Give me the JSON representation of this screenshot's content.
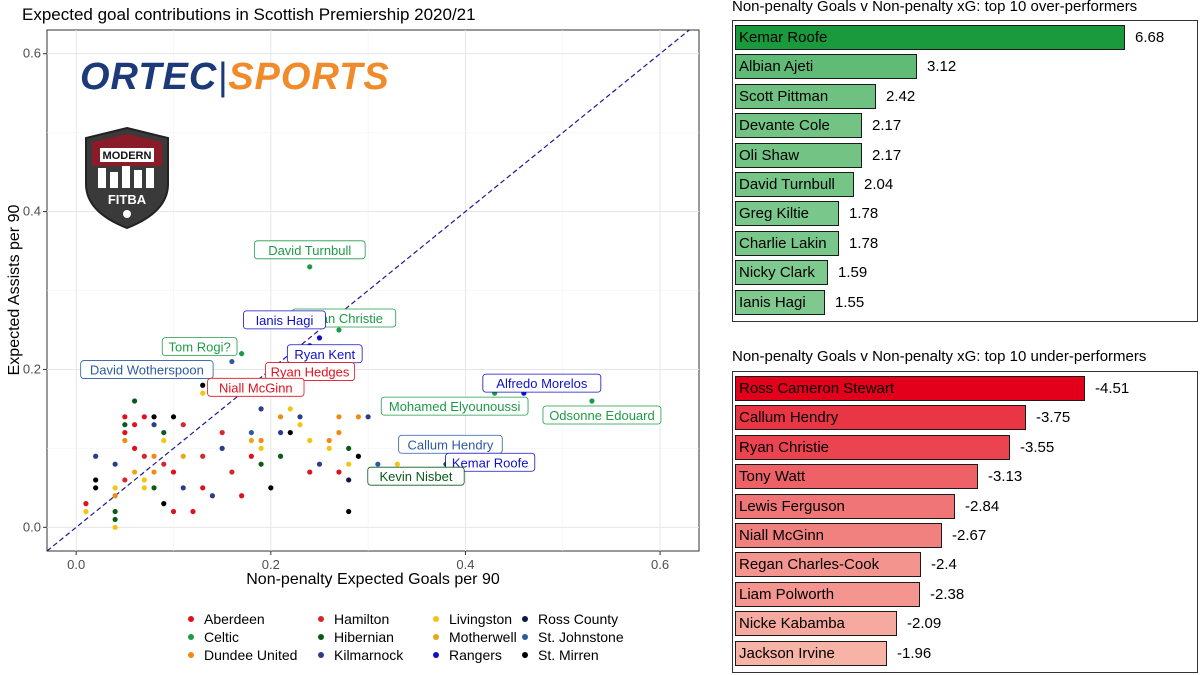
{
  "chart_data": [
    {
      "type": "scatter",
      "title": "Expected goal contributions in Scottish Premiership 2020/21",
      "xlabel": "Non-penalty Expected Goals per 90",
      "ylabel": "Expected Assists per 90",
      "xlim": [
        -0.03,
        0.64
      ],
      "ylim": [
        -0.03,
        0.63
      ],
      "xticks": [
        "0.0",
        "0.2",
        "0.4",
        "0.6"
      ],
      "yticks": [
        "0.0",
        "0.2",
        "0.4",
        "0.6"
      ],
      "reference_line": "y = x",
      "legend": [
        {
          "team": "Aberdeen",
          "color": "#e0101f"
        },
        {
          "team": "Celtic",
          "color": "#1e9a47"
        },
        {
          "team": "Dundee United",
          "color": "#f28a11"
        },
        {
          "team": "Hamilton",
          "color": "#d9262e"
        },
        {
          "team": "Hibernian",
          "color": "#0a5a1a"
        },
        {
          "team": "Kilmarnock",
          "color": "#2c3c8c"
        },
        {
          "team": "Livingston",
          "color": "#f6c30f"
        },
        {
          "team": "Motherwell",
          "color": "#e8a818"
        },
        {
          "team": "Rangers",
          "color": "#1010c8"
        },
        {
          "team": "Ross County",
          "color": "#0b1a3d"
        },
        {
          "team": "St. Johnstone",
          "color": "#2d5aa0"
        },
        {
          "team": "St. Mirren",
          "color": "#000000"
        }
      ],
      "labeled_points": [
        {
          "name": "David Turnbull",
          "team": "Celtic",
          "x": 0.24,
          "y": 0.33
        },
        {
          "name": "Ryan Christie",
          "team": "Celtic",
          "x": 0.27,
          "y": 0.25
        },
        {
          "name": "Ianis Hagi",
          "team": "Rangers",
          "x": 0.25,
          "y": 0.24
        },
        {
          "name": "Tom Rogi?",
          "team": "Celtic",
          "x": 0.17,
          "y": 0.22
        },
        {
          "name": "Ryan Kent",
          "team": "Rangers",
          "x": 0.24,
          "y": 0.23
        },
        {
          "name": "David Wotherspoon",
          "team": "St. Johnstone",
          "x": 0.16,
          "y": 0.21
        },
        {
          "name": "Ryan Hedges",
          "team": "Aberdeen",
          "x": 0.23,
          "y": 0.21
        },
        {
          "name": "Niall McGinn",
          "team": "Aberdeen",
          "x": 0.2,
          "y": 0.19
        },
        {
          "name": "Alfredo Morelos",
          "team": "Rangers",
          "x": 0.46,
          "y": 0.17
        },
        {
          "name": "Mohamed Elyounoussi",
          "team": "Celtic",
          "x": 0.43,
          "y": 0.17
        },
        {
          "name": "Odsonne Edouard",
          "team": "Celtic",
          "x": 0.53,
          "y": 0.16
        },
        {
          "name": "Callum Hendry",
          "team": "St. Johnstone",
          "x": 0.4,
          "y": 0.09
        },
        {
          "name": "Kemar Roofe",
          "team": "Rangers",
          "x": 0.41,
          "y": 0.09
        },
        {
          "name": "Kevin Nisbet",
          "team": "Hibernian",
          "x": 0.38,
          "y": 0.08
        }
      ],
      "points": [
        {
          "team": "Aberdeen",
          "x": 0.01,
          "y": 0.03
        },
        {
          "team": "St. Mirren",
          "x": 0.02,
          "y": 0.05
        },
        {
          "team": "St. Mirren",
          "x": 0.02,
          "y": 0.06
        },
        {
          "team": "Livingston",
          "x": 0.01,
          "y": 0.02
        },
        {
          "team": "Hibernian",
          "x": 0.04,
          "y": 0.02
        },
        {
          "team": "Livingston",
          "x": 0.04,
          "y": 0.0
        },
        {
          "team": "Dundee United",
          "x": 0.04,
          "y": 0.04
        },
        {
          "team": "Livingston",
          "x": 0.04,
          "y": 0.05
        },
        {
          "team": "Hibernian",
          "x": 0.04,
          "y": 0.01
        },
        {
          "team": "Kilmarnock",
          "x": 0.02,
          "y": 0.09
        },
        {
          "team": "Aberdeen",
          "x": 0.05,
          "y": 0.12
        },
        {
          "team": "Hibernian",
          "x": 0.05,
          "y": 0.13
        },
        {
          "team": "Aberdeen",
          "x": 0.05,
          "y": 0.14
        },
        {
          "team": "Dundee United",
          "x": 0.05,
          "y": 0.11
        },
        {
          "team": "Aberdeen",
          "x": 0.06,
          "y": 0.1
        },
        {
          "team": "Hibernian",
          "x": 0.06,
          "y": 0.16
        },
        {
          "team": "Aberdeen",
          "x": 0.06,
          "y": 0.13
        },
        {
          "team": "Motherwell",
          "x": 0.06,
          "y": 0.07
        },
        {
          "team": "Kilmarnock",
          "x": 0.04,
          "y": 0.08
        },
        {
          "team": "Hamilton",
          "x": 0.05,
          "y": 0.06
        },
        {
          "team": "Aberdeen",
          "x": 0.07,
          "y": 0.14
        },
        {
          "team": "Livingston",
          "x": 0.07,
          "y": 0.05
        },
        {
          "team": "Hamilton",
          "x": 0.07,
          "y": 0.09
        },
        {
          "team": "Livingston",
          "x": 0.07,
          "y": 0.06
        },
        {
          "team": "Dundee United",
          "x": 0.08,
          "y": 0.09
        },
        {
          "team": "St. Mirren",
          "x": 0.08,
          "y": 0.14
        },
        {
          "team": "Kilmarnock",
          "x": 0.08,
          "y": 0.13
        },
        {
          "team": "Dundee United",
          "x": 0.08,
          "y": 0.07
        },
        {
          "team": "Hibernian",
          "x": 0.08,
          "y": 0.05
        },
        {
          "team": "Livingston",
          "x": 0.09,
          "y": 0.11
        },
        {
          "team": "Hamilton",
          "x": 0.09,
          "y": 0.08
        },
        {
          "team": "St. Mirren",
          "x": 0.09,
          "y": 0.03
        },
        {
          "team": "Hibernian",
          "x": 0.09,
          "y": 0.12
        },
        {
          "team": "Aberdeen",
          "x": 0.1,
          "y": 0.07
        },
        {
          "team": "Aberdeen",
          "x": 0.1,
          "y": 0.02
        },
        {
          "team": "St. Mirren",
          "x": 0.1,
          "y": 0.14
        },
        {
          "team": "Hamilton",
          "x": 0.11,
          "y": 0.13
        },
        {
          "team": "Kilmarnock",
          "x": 0.11,
          "y": 0.05
        },
        {
          "team": "Motherwell",
          "x": 0.11,
          "y": 0.09
        },
        {
          "team": "Aberdeen",
          "x": 0.12,
          "y": 0.02
        },
        {
          "team": "Aberdeen",
          "x": 0.13,
          "y": 0.05
        },
        {
          "team": "Hamilton",
          "x": 0.13,
          "y": 0.09
        },
        {
          "team": "Livingston",
          "x": 0.13,
          "y": 0.17
        },
        {
          "team": "St. Mirren",
          "x": 0.13,
          "y": 0.18
        },
        {
          "team": "Kilmarnock",
          "x": 0.14,
          "y": 0.04
        },
        {
          "team": "Hamilton",
          "x": 0.15,
          "y": 0.12
        },
        {
          "team": "Kilmarnock",
          "x": 0.15,
          "y": 0.1
        },
        {
          "team": "Hamilton",
          "x": 0.16,
          "y": 0.07
        },
        {
          "team": "Aberdeen",
          "x": 0.17,
          "y": 0.04
        },
        {
          "team": "Aberdeen",
          "x": 0.18,
          "y": 0.09
        },
        {
          "team": "Motherwell",
          "x": 0.18,
          "y": 0.11
        },
        {
          "team": "St. Johnstone",
          "x": 0.18,
          "y": 0.12
        },
        {
          "team": "Livingston",
          "x": 0.19,
          "y": 0.1
        },
        {
          "team": "Kilmarnock",
          "x": 0.19,
          "y": 0.15
        },
        {
          "team": "Hibernian",
          "x": 0.19,
          "y": 0.08
        },
        {
          "team": "Dundee United",
          "x": 0.19,
          "y": 0.11
        },
        {
          "team": "St. Mirren",
          "x": 0.2,
          "y": 0.05
        },
        {
          "team": "Dundee United",
          "x": 0.21,
          "y": 0.14
        },
        {
          "team": "Hibernian",
          "x": 0.21,
          "y": 0.09
        },
        {
          "team": "Kilmarnock",
          "x": 0.21,
          "y": 0.12
        },
        {
          "team": "Livingston",
          "x": 0.22,
          "y": 0.15
        },
        {
          "team": "St. Mirren",
          "x": 0.22,
          "y": 0.12
        },
        {
          "team": "Livingston",
          "x": 0.23,
          "y": 0.13
        },
        {
          "team": "Kilmarnock",
          "x": 0.23,
          "y": 0.14
        },
        {
          "team": "Livingston",
          "x": 0.24,
          "y": 0.11
        },
        {
          "team": "Aberdeen",
          "x": 0.24,
          "y": 0.07
        },
        {
          "team": "Kilmarnock",
          "x": 0.25,
          "y": 0.08
        },
        {
          "team": "Dundee United",
          "x": 0.26,
          "y": 0.11
        },
        {
          "team": "Livingston",
          "x": 0.26,
          "y": 0.1
        },
        {
          "team": "Dundee United",
          "x": 0.27,
          "y": 0.14
        },
        {
          "team": "Hibernian",
          "x": 0.28,
          "y": 0.1
        },
        {
          "team": "Livingston",
          "x": 0.28,
          "y": 0.08
        },
        {
          "team": "St. Mirren",
          "x": 0.29,
          "y": 0.09
        },
        {
          "team": "Ross County",
          "x": 0.28,
          "y": 0.06
        },
        {
          "team": "St. Mirren",
          "x": 0.28,
          "y": 0.02
        },
        {
          "team": "Dundee United",
          "x": 0.29,
          "y": 0.14
        },
        {
          "team": "Kilmarnock",
          "x": 0.3,
          "y": 0.14
        },
        {
          "team": "Aberdeen",
          "x": 0.27,
          "y": 0.07
        },
        {
          "team": "St. Johnstone",
          "x": 0.31,
          "y": 0.08
        },
        {
          "team": "Livingston",
          "x": 0.33,
          "y": 0.08
        },
        {
          "team": "Dundee United",
          "x": 0.27,
          "y": 0.12
        }
      ]
    },
    {
      "type": "bar",
      "title": "Non-penalty Goals v Non-penalty xG: top 10 over-performers",
      "categories": [
        "Kemar Roofe",
        "Albian Ajeti",
        "Scott Pittman",
        "Devante Cole",
        "Oli Shaw",
        "David Turnbull",
        "Greg Kiltie",
        "Charlie Lakin",
        "Nicky Clark",
        "Ianis Hagi"
      ],
      "values": [
        6.68,
        3.12,
        2.42,
        2.17,
        2.17,
        2.04,
        1.78,
        1.78,
        1.59,
        1.55
      ],
      "labels": [
        "6.68",
        "3.12",
        "2.42",
        "2.17",
        "2.17",
        "2.04",
        "1.78",
        "1.78",
        "1.59",
        "1.55"
      ],
      "color_high": "#1a9a3c",
      "color_low": "#7fc98f"
    },
    {
      "type": "bar",
      "title": "Non-penalty Goals v Non-penalty xG: top 10 under-performers",
      "categories": [
        "Ross Cameron Stewart",
        "Callum Hendry",
        "Ryan Christie",
        "Tony Watt",
        "Lewis Ferguson",
        "Niall McGinn",
        "Regan Charles-Cook",
        "Liam Polworth",
        "Nicke Kabamba",
        "Jackson Irvine"
      ],
      "values": [
        -4.51,
        -3.75,
        -3.55,
        -3.13,
        -2.84,
        -2.67,
        -2.4,
        -2.38,
        -2.09,
        -1.96
      ],
      "labels": [
        "-4.51",
        "-3.75",
        "-3.55",
        "-3.13",
        "-2.84",
        "-2.67",
        "-2.4",
        "-2.38",
        "-2.09",
        "-1.96"
      ],
      "color_high": "#e3001b",
      "color_low": "#f7b3a6"
    }
  ],
  "branding": {
    "ortec_part": "ORTEC",
    "separator": "|",
    "sports_part": "SPORTS",
    "badge_top": "MODERN",
    "badge_bottom": "FITBA"
  }
}
